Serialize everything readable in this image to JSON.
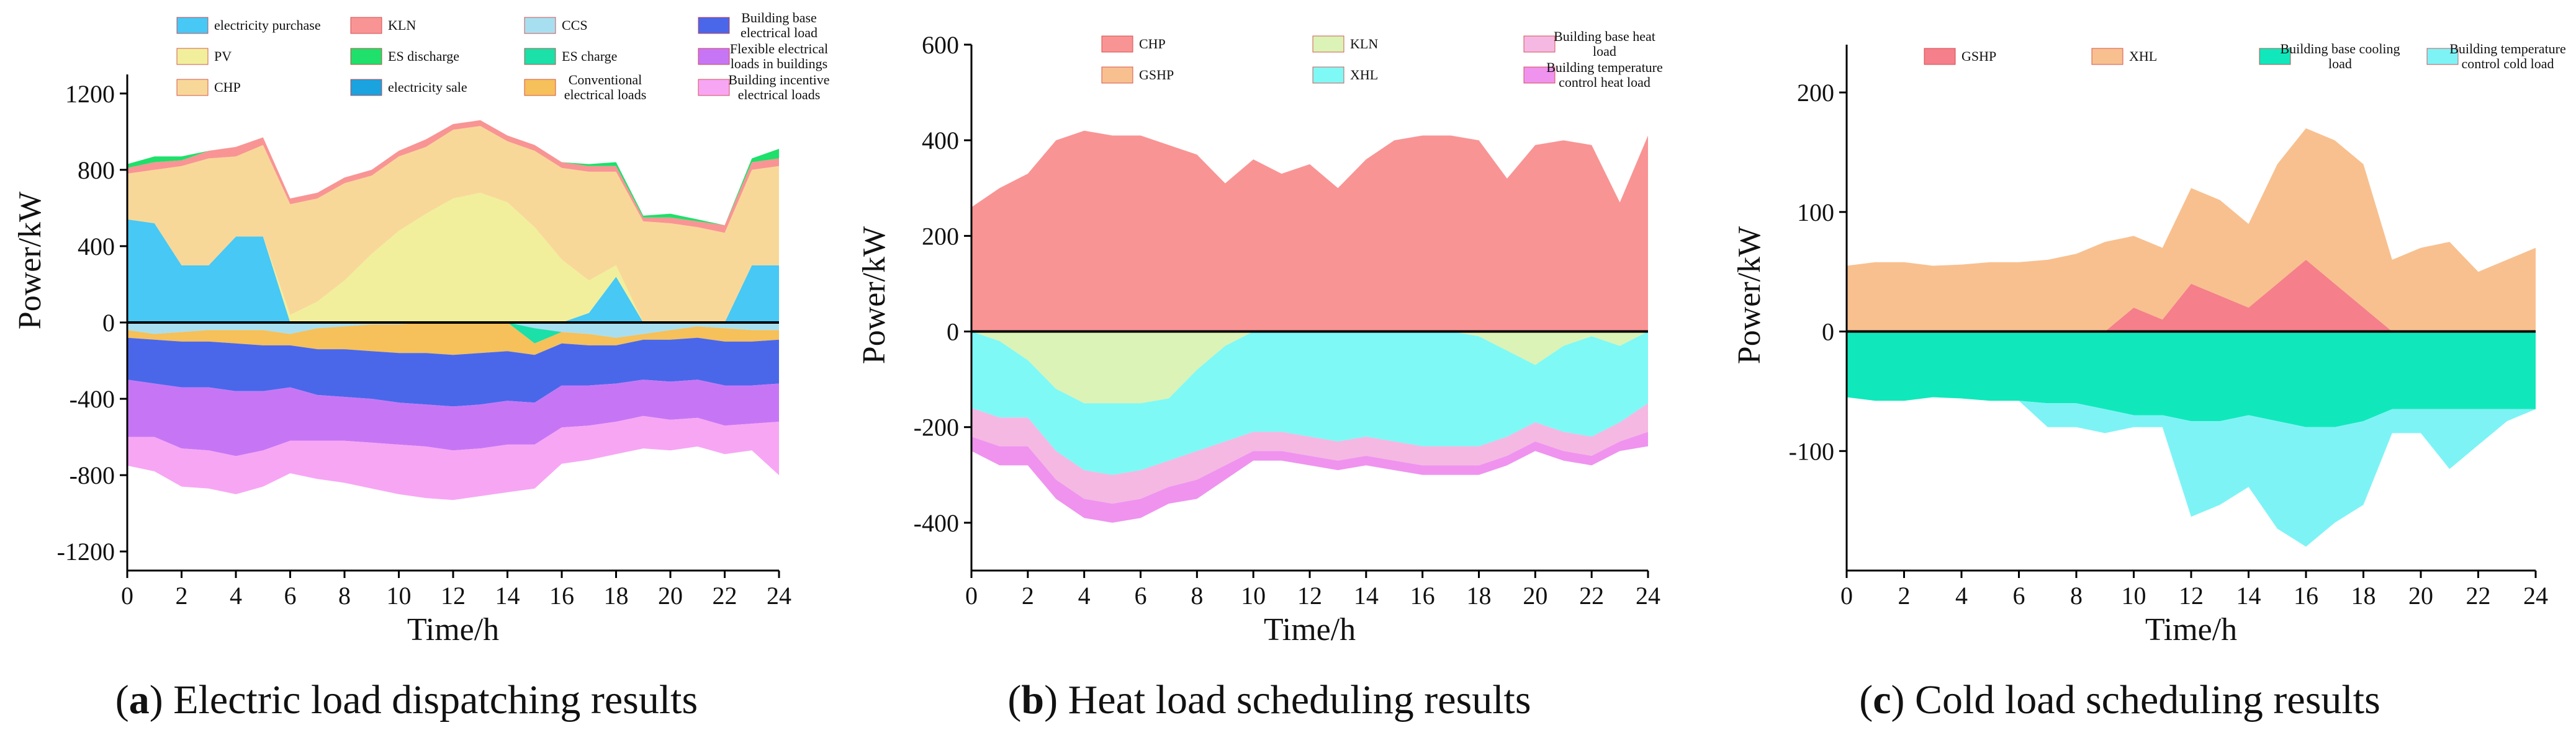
{
  "figure": {
    "charts": [
      {
        "panel": "a",
        "caption_letter": "a",
        "caption_text": "Electric load dispatching results"
      },
      {
        "panel": "b",
        "caption_letter": "b",
        "caption_text": "Heat load scheduling results"
      },
      {
        "panel": "c",
        "caption_letter": "c",
        "caption_text": "Cold load scheduling results"
      }
    ]
  },
  "chart_data": [
    {
      "type": "area",
      "panel": "a",
      "title": "Electric load dispatching results",
      "xlabel": "Time/h",
      "ylabel": "Power/kW",
      "xlim": [
        0,
        24
      ],
      "ylim": [
        -1300,
        1300
      ],
      "xticks": [
        0,
        2,
        4,
        6,
        8,
        10,
        12,
        14,
        16,
        18,
        20,
        22,
        24
      ],
      "yticks": [
        -1200,
        -800,
        -400,
        0,
        400,
        800,
        1200
      ],
      "legend_position": "top",
      "x": [
        0,
        1,
        2,
        3,
        4,
        5,
        6,
        7,
        8,
        9,
        10,
        11,
        12,
        13,
        14,
        15,
        16,
        17,
        18,
        19,
        20,
        21,
        22,
        23,
        24
      ],
      "positive_series": [
        {
          "name": "electricity purchase",
          "color": "#47c8f5",
          "values": [
            540,
            520,
            300,
            300,
            450,
            450,
            0,
            0,
            0,
            0,
            0,
            0,
            0,
            0,
            0,
            0,
            0,
            50,
            240,
            0,
            0,
            0,
            0,
            300,
            300
          ]
        },
        {
          "name": "PV",
          "color": "#f1ef9c",
          "values": [
            0,
            0,
            0,
            0,
            0,
            0,
            40,
            110,
            220,
            360,
            480,
            570,
            650,
            680,
            630,
            500,
            330,
            170,
            60,
            0,
            0,
            0,
            0,
            0,
            0
          ]
        },
        {
          "name": "CHP",
          "color": "#f8d898",
          "values": [
            240,
            280,
            520,
            560,
            420,
            480,
            580,
            540,
            510,
            410,
            390,
            350,
            360,
            350,
            320,
            400,
            480,
            570,
            490,
            530,
            520,
            500,
            470,
            500,
            520
          ]
        },
        {
          "name": "KLN",
          "color": "#f99494",
          "values": [
            30,
            40,
            30,
            40,
            50,
            40,
            30,
            30,
            30,
            30,
            30,
            40,
            30,
            30,
            30,
            30,
            30,
            30,
            30,
            20,
            30,
            30,
            40,
            40,
            40
          ]
        },
        {
          "name": "ES discharge",
          "color": "#1ee06a",
          "values": [
            20,
            30,
            20,
            0,
            0,
            0,
            0,
            0,
            0,
            0,
            0,
            0,
            0,
            0,
            0,
            0,
            0,
            10,
            20,
            10,
            20,
            10,
            0,
            20,
            50
          ]
        }
      ],
      "negative_series": [
        {
          "name": "electricity sale",
          "color": "#1aa3df",
          "values": [
            0,
            0,
            0,
            0,
            0,
            0,
            0,
            0,
            0,
            0,
            0,
            0,
            0,
            0,
            0,
            0,
            0,
            0,
            0,
            0,
            0,
            0,
            0,
            0,
            0
          ]
        },
        {
          "name": "CCS",
          "color": "#a8dff0",
          "values": [
            40,
            60,
            50,
            40,
            40,
            40,
            60,
            30,
            20,
            10,
            10,
            0,
            0,
            0,
            0,
            30,
            50,
            60,
            80,
            60,
            40,
            20,
            30,
            40,
            40
          ]
        },
        {
          "name": "ES charge",
          "color": "#1be0a8",
          "values": [
            0,
            0,
            0,
            0,
            0,
            0,
            0,
            0,
            0,
            0,
            0,
            0,
            0,
            0,
            0,
            80,
            0,
            0,
            0,
            0,
            0,
            0,
            0,
            0,
            0
          ]
        },
        {
          "name": "Conventional electrical loads",
          "color": "#f6c05a",
          "values": [
            40,
            30,
            50,
            60,
            70,
            80,
            60,
            110,
            120,
            140,
            150,
            160,
            170,
            160,
            150,
            60,
            60,
            60,
            40,
            30,
            50,
            60,
            70,
            60,
            50
          ]
        },
        {
          "name": "Building base electrical load",
          "color": "#4a67ea",
          "values": [
            220,
            230,
            240,
            240,
            250,
            240,
            220,
            240,
            250,
            250,
            260,
            270,
            270,
            270,
            260,
            250,
            220,
            210,
            200,
            210,
            220,
            220,
            230,
            230,
            230
          ]
        },
        {
          "name": "Flexible electrical loads in buildings",
          "color": "#c676f5",
          "values": [
            300,
            280,
            320,
            330,
            340,
            310,
            280,
            240,
            230,
            230,
            220,
            220,
            230,
            230,
            230,
            220,
            220,
            210,
            200,
            190,
            200,
            200,
            210,
            200,
            200
          ]
        },
        {
          "name": "Building incentive electrical loads",
          "color": "#f7a6f4",
          "values": [
            150,
            180,
            200,
            200,
            200,
            190,
            170,
            200,
            220,
            240,
            260,
            270,
            260,
            250,
            250,
            230,
            190,
            180,
            170,
            170,
            160,
            150,
            150,
            140,
            280
          ]
        }
      ]
    },
    {
      "type": "area",
      "panel": "b",
      "title": "Heat load scheduling results",
      "xlabel": "Time/h",
      "ylabel": "Power/kW",
      "xlim": [
        0,
        24
      ],
      "ylim": [
        -500,
        600
      ],
      "xticks": [
        0,
        2,
        4,
        6,
        8,
        10,
        12,
        14,
        16,
        18,
        20,
        22,
        24
      ],
      "yticks": [
        -400,
        -200,
        0,
        200,
        400,
        600
      ],
      "legend_position": "top",
      "x": [
        0,
        1,
        2,
        3,
        4,
        5,
        6,
        7,
        8,
        9,
        10,
        11,
        12,
        13,
        14,
        15,
        16,
        17,
        18,
        19,
        20,
        21,
        22,
        23,
        24
      ],
      "positive_series": [
        {
          "name": "CHP",
          "color": "#f99494",
          "values": [
            260,
            300,
            330,
            400,
            420,
            410,
            410,
            390,
            370,
            310,
            360,
            330,
            350,
            300,
            360,
            400,
            410,
            410,
            400,
            320,
            390,
            400,
            390,
            270,
            410
          ]
        },
        {
          "name": "GSHP",
          "color": "#f8c08f",
          "values": [
            0,
            0,
            0,
            0,
            0,
            0,
            0,
            0,
            0,
            0,
            0,
            0,
            0,
            0,
            0,
            0,
            0,
            0,
            0,
            0,
            0,
            0,
            0,
            0,
            0
          ]
        }
      ],
      "negative_series": [
        {
          "name": "KLN",
          "color": "#dbf3b6",
          "values": [
            0,
            20,
            60,
            120,
            150,
            150,
            150,
            140,
            80,
            30,
            0,
            0,
            0,
            0,
            0,
            0,
            0,
            0,
            10,
            40,
            70,
            30,
            10,
            30,
            0
          ]
        },
        {
          "name": "XHL",
          "color": "#7ef9f6",
          "values": [
            160,
            160,
            120,
            130,
            140,
            150,
            140,
            130,
            170,
            200,
            210,
            210,
            220,
            230,
            220,
            230,
            240,
            240,
            230,
            180,
            120,
            180,
            210,
            160,
            150
          ]
        },
        {
          "name": "Building base heat load",
          "color": "#f5b8e2",
          "values": [
            60,
            60,
            60,
            60,
            60,
            60,
            60,
            55,
            60,
            50,
            40,
            40,
            40,
            40,
            40,
            40,
            40,
            40,
            40,
            40,
            40,
            40,
            40,
            40,
            60
          ]
        },
        {
          "name": "Building temperature control heat load",
          "color": "#ef93ef",
          "values": [
            30,
            40,
            40,
            40,
            40,
            40,
            40,
            35,
            40,
            30,
            20,
            20,
            20,
            20,
            20,
            20,
            20,
            20,
            20,
            20,
            20,
            20,
            20,
            20,
            30
          ]
        }
      ]
    },
    {
      "type": "area",
      "panel": "c",
      "title": "Cold load scheduling results",
      "xlabel": "Time/h",
      "ylabel": "Power/kW",
      "xlim": [
        0,
        24
      ],
      "ylim": [
        -200,
        240
      ],
      "xticks": [
        0,
        2,
        4,
        6,
        8,
        10,
        12,
        14,
        16,
        18,
        20,
        22,
        24
      ],
      "yticks": [
        -100,
        0,
        100,
        200
      ],
      "legend_position": "top",
      "x": [
        0,
        1,
        2,
        3,
        4,
        5,
        6,
        7,
        8,
        9,
        10,
        11,
        12,
        13,
        14,
        15,
        16,
        17,
        18,
        19,
        20,
        21,
        22,
        23,
        24
      ],
      "positive_series": [
        {
          "name": "GSHP",
          "color": "#f57f8a",
          "values": [
            0,
            0,
            0,
            0,
            0,
            0,
            0,
            0,
            0,
            0,
            20,
            10,
            40,
            30,
            20,
            40,
            60,
            40,
            20,
            0,
            0,
            0,
            0,
            0,
            0
          ]
        },
        {
          "name": "XHL",
          "color": "#f8c08f",
          "values": [
            55,
            58,
            58,
            55,
            56,
            58,
            58,
            60,
            65,
            75,
            60,
            60,
            80,
            80,
            70,
            100,
            110,
            120,
            120,
            60,
            70,
            75,
            50,
            60,
            70
          ]
        }
      ],
      "negative_series": [
        {
          "name": "Building base cooling load",
          "color": "#10e8bc",
          "values": [
            55,
            58,
            58,
            55,
            56,
            58,
            58,
            60,
            60,
            65,
            70,
            70,
            75,
            75,
            70,
            75,
            80,
            80,
            75,
            65,
            65,
            65,
            65,
            65,
            65
          ]
        },
        {
          "name": "Building temperature control cold load",
          "color": "#7ef3f6",
          "values": [
            0,
            0,
            0,
            0,
            0,
            0,
            0,
            20,
            20,
            20,
            10,
            10,
            80,
            70,
            60,
            90,
            100,
            80,
            70,
            20,
            20,
            50,
            30,
            10,
            0
          ]
        }
      ]
    }
  ]
}
